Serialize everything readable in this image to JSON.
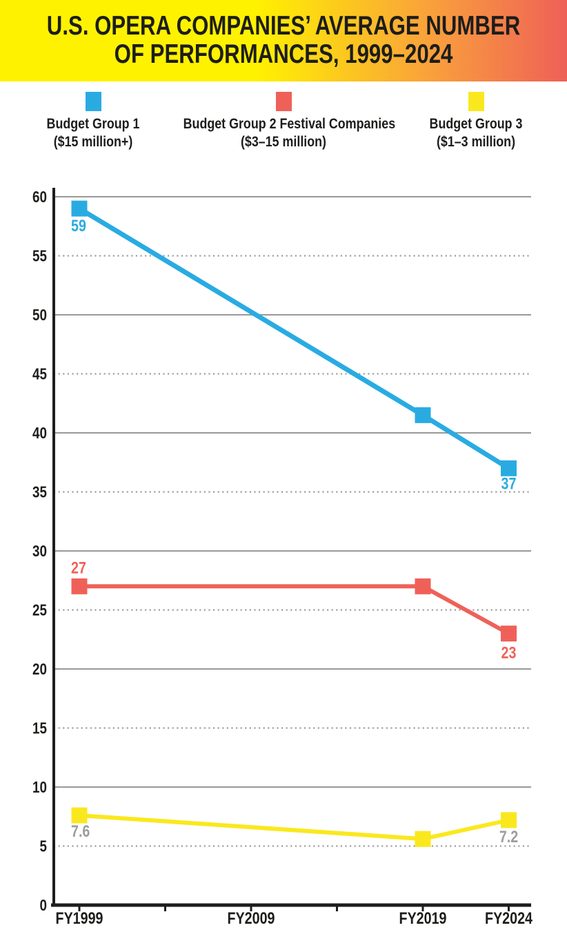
{
  "header": {
    "title_line1": "U.S. OPERA COMPANIES’ AVERAGE NUMBER",
    "title_line2": "OF PERFORMANCES, 1999–2024",
    "gradient_left_color": "#FFF200",
    "gradient_right_color": "#EE6057"
  },
  "legend": {
    "items": [
      {
        "line1": "Budget Group 1",
        "line2": "($15 million+)",
        "color": "#29ABE2"
      },
      {
        "line1": "Budget Group 2 Festival Companies",
        "line2": "($3–15 million)",
        "color": "#EF6158"
      },
      {
        "line1": "Budget Group 3",
        "line2": "($1–3 million)",
        "color": "#FAE81E"
      }
    ]
  },
  "chart_data": {
    "type": "line",
    "title": "U.S. Opera Companies’ Average Number of Performances, 1999–2024",
    "x": [
      "FY1999",
      "FY2019",
      "FY2024"
    ],
    "x_axis": {
      "ticks": [
        "FY1999",
        "FY2004",
        "FY2009",
        "FY2014",
        "FY2019",
        "FY2024"
      ],
      "labeled_ticks": [
        "FY1999",
        "FY2009",
        "FY2019",
        "FY2024"
      ]
    },
    "y_axis": {
      "min": 0,
      "max": 60,
      "tick_step": 5,
      "solid_gridline_step": 10,
      "dotted_gridline_step": 5,
      "solid_grid_color": "#989898",
      "dotted_grid_color": "#9E9E9E",
      "axis_color": "#1d1d1b"
    },
    "grid": true,
    "legend_position": "top",
    "marker": "square",
    "series": [
      {
        "name": "Budget Group 1 ($15 million+)",
        "color": "#29ABE2",
        "label_color": "#29ABE2",
        "values": [
          59,
          41.5,
          37
        ],
        "point_labels": [
          "59",
          null,
          "37"
        ]
      },
      {
        "name": "Budget Group 2 Festival Companies ($3–15 million)",
        "color": "#EF6158",
        "label_color": "#EF6158",
        "values": [
          27,
          27,
          23
        ],
        "point_labels": [
          "27",
          null,
          "23"
        ]
      },
      {
        "name": "Budget Group 3 ($1–3 million)",
        "color": "#FAE81E",
        "label_color": "#9B9DA0",
        "values": [
          7.6,
          5.6,
          7.2
        ],
        "point_labels": [
          "7.6",
          null,
          "7.2"
        ]
      }
    ]
  }
}
